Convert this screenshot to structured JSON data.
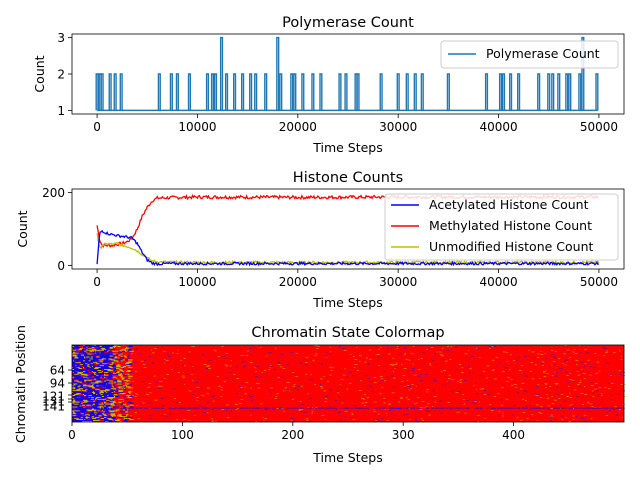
{
  "chart_data": [
    {
      "type": "line",
      "title": "Polymerase Count",
      "xlabel": "Time Steps",
      "ylabel": "Count",
      "xlim": [
        -2500,
        52500
      ],
      "ylim": [
        0.9,
        3.1
      ],
      "xticks": [
        0,
        10000,
        20000,
        30000,
        40000,
        50000
      ],
      "yticks": [
        1,
        2,
        3
      ],
      "legend": "top-right",
      "color": "#1f77b4",
      "series": [
        {
          "name": "Polymerase Count",
          "baseline": 1,
          "x_range": [
            0,
            49900
          ],
          "spikes": [
            {
              "x": 0,
              "y": 2
            },
            {
              "x": 300,
              "y": 2
            },
            {
              "x": 500,
              "y": 2
            },
            {
              "x": 1300,
              "y": 2
            },
            {
              "x": 1800,
              "y": 2
            },
            {
              "x": 2400,
              "y": 2
            },
            {
              "x": 6200,
              "y": 2
            },
            {
              "x": 7400,
              "y": 2
            },
            {
              "x": 8000,
              "y": 2
            },
            {
              "x": 9200,
              "y": 2
            },
            {
              "x": 11000,
              "y": 2
            },
            {
              "x": 11500,
              "y": 2
            },
            {
              "x": 11800,
              "y": 2
            },
            {
              "x": 12400,
              "y": 3
            },
            {
              "x": 12900,
              "y": 2
            },
            {
              "x": 13700,
              "y": 2
            },
            {
              "x": 14500,
              "y": 2
            },
            {
              "x": 15300,
              "y": 2
            },
            {
              "x": 15800,
              "y": 2
            },
            {
              "x": 16800,
              "y": 2
            },
            {
              "x": 18000,
              "y": 3
            },
            {
              "x": 18300,
              "y": 2
            },
            {
              "x": 19400,
              "y": 2
            },
            {
              "x": 19700,
              "y": 2
            },
            {
              "x": 20500,
              "y": 2
            },
            {
              "x": 21500,
              "y": 2
            },
            {
              "x": 22300,
              "y": 2
            },
            {
              "x": 24200,
              "y": 2
            },
            {
              "x": 24800,
              "y": 2
            },
            {
              "x": 25800,
              "y": 2
            },
            {
              "x": 26000,
              "y": 2
            },
            {
              "x": 28300,
              "y": 2
            },
            {
              "x": 30000,
              "y": 2
            },
            {
              "x": 30900,
              "y": 2
            },
            {
              "x": 31700,
              "y": 2
            },
            {
              "x": 32400,
              "y": 2
            },
            {
              "x": 35000,
              "y": 2
            },
            {
              "x": 38800,
              "y": 2
            },
            {
              "x": 40200,
              "y": 2
            },
            {
              "x": 40500,
              "y": 2
            },
            {
              "x": 41200,
              "y": 2
            },
            {
              "x": 42000,
              "y": 2
            },
            {
              "x": 44000,
              "y": 2
            },
            {
              "x": 45000,
              "y": 2
            },
            {
              "x": 45400,
              "y": 2
            },
            {
              "x": 46000,
              "y": 2
            },
            {
              "x": 46800,
              "y": 2
            },
            {
              "x": 47100,
              "y": 2
            },
            {
              "x": 48100,
              "y": 2
            },
            {
              "x": 48400,
              "y": 3
            },
            {
              "x": 49800,
              "y": 2
            }
          ]
        }
      ]
    },
    {
      "type": "line",
      "title": "Histone Counts",
      "xlabel": "Time Steps",
      "ylabel": "Count",
      "xlim": [
        -2500,
        52500
      ],
      "ylim": [
        -10,
        210
      ],
      "xticks": [
        0,
        10000,
        20000,
        30000,
        40000,
        50000
      ],
      "yticks": [
        0,
        200
      ],
      "legend": "top-right",
      "series": [
        {
          "name": "Acetylated Histone Count",
          "color": "#0000ff",
          "x": [
            0,
            250,
            500,
            1000,
            1500,
            2000,
            2500,
            3000,
            3500,
            4000,
            4500,
            5000,
            5500,
            6000,
            7000,
            10000,
            20000,
            30000,
            40000,
            50000
          ],
          "y": [
            2,
            88,
            95,
            88,
            85,
            82,
            80,
            78,
            75,
            60,
            35,
            15,
            6,
            4,
            5,
            5,
            5,
            5,
            5,
            5
          ]
        },
        {
          "name": "Methylated Histone Count",
          "color": "#ff0000",
          "x": [
            0,
            250,
            500,
            1000,
            1500,
            2000,
            2500,
            3000,
            3500,
            4000,
            4500,
            5000,
            5500,
            6000,
            7000,
            10000,
            20000,
            30000,
            40000,
            50000
          ],
          "y": [
            110,
            70,
            55,
            55,
            55,
            58,
            60,
            65,
            75,
            100,
            135,
            160,
            178,
            185,
            186,
            188,
            187,
            188,
            188,
            188
          ]
        },
        {
          "name": "Unmodified Histone Count",
          "color": "#bfbf00",
          "x": [
            0,
            250,
            500,
            1000,
            1500,
            2000,
            2500,
            3000,
            3500,
            4000,
            4500,
            5000,
            5500,
            6000,
            7000,
            10000,
            20000,
            30000,
            40000,
            50000
          ],
          "y": [
            90,
            45,
            55,
            60,
            58,
            60,
            55,
            52,
            48,
            40,
            30,
            20,
            12,
            10,
            9,
            8,
            8,
            8,
            8,
            8
          ]
        }
      ]
    },
    {
      "type": "heatmap",
      "title": "Chromatin State Colormap",
      "xlabel": "Time Steps",
      "ylabel": "Chromatin Position",
      "xlim": [
        0,
        500
      ],
      "xticks": [
        0,
        100,
        200,
        300,
        400
      ],
      "yticks": [
        64,
        94,
        121,
        131,
        141
      ],
      "colors": {
        "acetylated": "#0000ff",
        "methylated": "#ff0000",
        "unmodified": "#c8c800"
      },
      "transition_time": 45,
      "persistent_row": 131
    }
  ]
}
